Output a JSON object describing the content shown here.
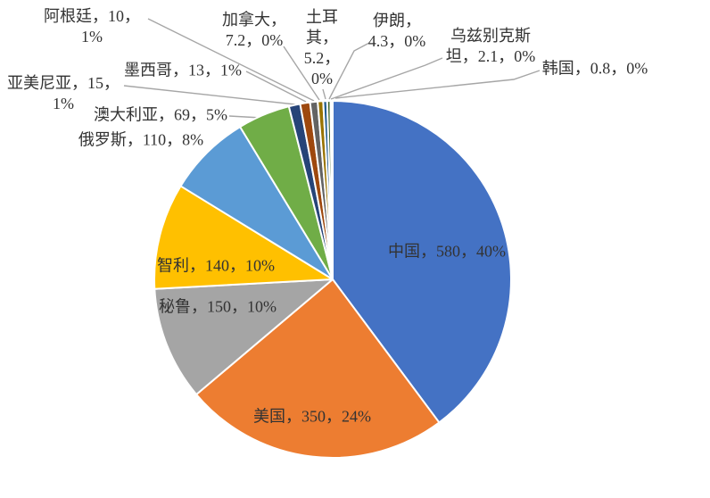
{
  "chart_data": {
    "type": "pie",
    "title": "",
    "legend": "none",
    "direction": "clockwise",
    "start_angle_deg": 0,
    "total": 1456.6,
    "categories": [
      "中国",
      "美国",
      "秘鲁",
      "智利",
      "俄罗斯",
      "澳大利亚",
      "亚美尼亚",
      "墨西哥",
      "阿根廷",
      "加拿大",
      "土耳其",
      "伊朗",
      "乌兹别克斯坦",
      "韩国"
    ],
    "values": [
      580,
      350,
      150,
      140,
      110,
      69,
      15,
      13,
      10,
      7.2,
      5.2,
      4.3,
      2.1,
      0.8
    ],
    "points": [
      {
        "id": "china",
        "name": "中国",
        "value": 580,
        "percent": "40%",
        "color": "#4472C4",
        "label": "中国，580，40%",
        "label_placement": "inside"
      },
      {
        "id": "usa",
        "name": "美国",
        "value": 350,
        "percent": "24%",
        "color": "#ED7D31",
        "label": "美国，350，24%",
        "label_placement": "inside"
      },
      {
        "id": "peru",
        "name": "秘鲁",
        "value": 150,
        "percent": "10%",
        "color": "#A5A5A5",
        "label": "秘鲁，150，10%",
        "label_placement": "inside"
      },
      {
        "id": "chile",
        "name": "智利",
        "value": 140,
        "percent": "10%",
        "color": "#FFC000",
        "label": "智利，140，10%",
        "label_placement": "inside"
      },
      {
        "id": "russia",
        "name": "俄罗斯",
        "value": 110,
        "percent": "8%",
        "color": "#5B9BD5",
        "label": "俄罗斯，110，8%",
        "label_placement": "outside"
      },
      {
        "id": "australia",
        "name": "澳大利亚",
        "value": 69,
        "percent": "5%",
        "color": "#70AD47",
        "label": "澳大利亚，69，5%",
        "label_placement": "outside"
      },
      {
        "id": "armenia",
        "name": "亚美尼亚",
        "value": 15,
        "percent": "1%",
        "color": "#264478",
        "label": "亚美尼亚，15，\n1%",
        "label_placement": "outside"
      },
      {
        "id": "mexico",
        "name": "墨西哥",
        "value": 13,
        "percent": "1%",
        "color": "#9E480E",
        "label": "墨西哥，13，1%",
        "label_placement": "outside"
      },
      {
        "id": "argentina",
        "name": "阿根廷",
        "value": 10,
        "percent": "1%",
        "color": "#636363",
        "label": "阿根廷，10，\n1%",
        "label_placement": "outside"
      },
      {
        "id": "canada",
        "name": "加拿大",
        "value": 7.2,
        "percent": "0%",
        "color": "#997300",
        "label": "加拿大，\n7.2，0%",
        "label_placement": "outside"
      },
      {
        "id": "turkey",
        "name": "土耳其",
        "value": 5.2,
        "percent": "0%",
        "color": "#255E91",
        "label": "土耳\n其，\n5.2，\n0%",
        "label_placement": "outside"
      },
      {
        "id": "iran",
        "name": "伊朗",
        "value": 4.3,
        "percent": "0%",
        "color": "#43682B",
        "label": "伊朗，\n4.3，0%",
        "label_placement": "outside"
      },
      {
        "id": "uzbekistan",
        "name": "乌兹别克斯坦",
        "value": 2.1,
        "percent": "0%",
        "color": "#698ED0",
        "label": "乌兹别克斯\n坦，2.1，0%",
        "label_placement": "outside"
      },
      {
        "id": "korea",
        "name": "韩国",
        "value": 0.8,
        "percent": "0%",
        "color": "#F1975A",
        "label": "韩国，0.8，0%",
        "label_placement": "outside"
      }
    ]
  },
  "styles": {
    "background": "#ffffff",
    "label_color": "#333333",
    "slice_border_color": "#ffffff",
    "leader_line_color": "#A6A6A6"
  }
}
